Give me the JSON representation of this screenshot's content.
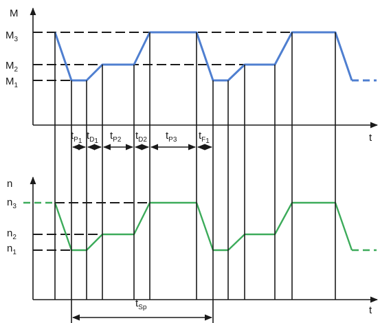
{
  "colors": {
    "torque_curve": "#4f7fd0",
    "speed_curve": "#3cab5a",
    "lines": "#1a1a1a"
  },
  "torque_axis": {
    "label": "M",
    "time_label": "t",
    "levels": {
      "m3": {
        "base": "M",
        "sub": "3"
      },
      "m2": {
        "base": "M",
        "sub": "2"
      },
      "m1": {
        "base": "M",
        "sub": "1"
      }
    }
  },
  "speed_axis": {
    "label": "n",
    "time_label": "t",
    "levels": {
      "n3": {
        "base": "n",
        "sub": "3"
      },
      "n2": {
        "base": "n",
        "sub": "2"
      },
      "n1": {
        "base": "n",
        "sub": "1"
      }
    }
  },
  "intervals": {
    "tp1": {
      "base": "t",
      "sub": "P",
      "sub2": "1"
    },
    "td1": {
      "base": "t",
      "sub": "D",
      "sub2": "1"
    },
    "tp2": {
      "base": "t",
      "sub": "P2",
      "sub2": ""
    },
    "td2": {
      "base": "t",
      "sub": "D2",
      "sub2": ""
    },
    "tp3": {
      "base": "t",
      "sub": "P3",
      "sub2": ""
    },
    "tf1": {
      "base": "t",
      "sub": "F",
      "sub2": "1"
    },
    "tsp": {
      "base": "t",
      "sub": "Sp",
      "sub2": ""
    }
  }
}
